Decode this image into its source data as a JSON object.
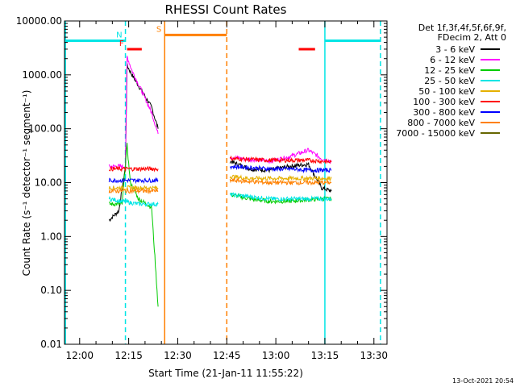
{
  "chart_data": {
    "type": "line",
    "title": "RHESSI Count Rates",
    "xlabel": "Start Time (21-Jan-11 11:55:22)",
    "ylabel": "Count Rate (s⁻¹ detector⁻¹ segment⁻¹)",
    "y_scale": "log",
    "ylim": [
      0.01,
      10000
    ],
    "xlim": [
      "11:55:22",
      "13:34:00"
    ],
    "x_ticks": [
      "12:00",
      "12:15",
      "12:30",
      "12:45",
      "13:00",
      "13:15",
      "13:30"
    ],
    "y_ticks": [
      "0.01",
      "0.10",
      "1.00",
      "10.00",
      "100.00",
      "1000.00",
      "10000.00"
    ],
    "grid": false,
    "legend_position": "right",
    "legend_header": [
      "Det 1f,3f,4f,5f,6f,9f,",
      "FDecim 2, Att 0"
    ],
    "timestamp": "13-Oct-2021 20:54",
    "series": [
      {
        "name": "3 - 6 keV",
        "color": "#000000",
        "segments": [
          {
            "x": [
              "12:09",
              "12:12",
              "12:14",
              "12:14:30",
              "12:16",
              "12:19",
              "12:22",
              "12:24"
            ],
            "y": [
              2.0,
              3.0,
              20,
              1500,
              1000,
              500,
              250,
              100
            ]
          },
          {
            "x": [
              "12:46",
              "12:52",
              "12:58",
              "13:04",
              "13:10",
              "13:14",
              "13:17"
            ],
            "y": [
              25,
              18,
              17,
              20,
              22,
              8,
              7
            ]
          }
        ]
      },
      {
        "name": "6 - 12 keV",
        "color": "#ff00ff",
        "segments": [
          {
            "x": [
              "12:09",
              "12:12",
              "12:14",
              "12:14:30",
              "12:16",
              "12:19",
              "12:22",
              "12:24"
            ],
            "y": [
              20,
              20,
              20,
              2200,
              1200,
              500,
              200,
              80
            ]
          },
          {
            "x": [
              "12:46",
              "12:52",
              "12:58",
              "13:04",
              "13:10",
              "13:14",
              "13:17"
            ],
            "y": [
              30,
              27,
              25,
              30,
              40,
              28,
              25
            ]
          }
        ]
      },
      {
        "name": "12 - 25 keV",
        "color": "#00cc00",
        "segments": [
          {
            "x": [
              "12:09",
              "12:13",
              "12:14:30",
              "12:15:30",
              "12:18",
              "12:22",
              "12:24"
            ],
            "y": [
              4,
              4,
              50,
              10,
              5,
              3.5,
              0.05
            ]
          },
          {
            "x": [
              "12:46",
              "12:52",
              "12:58",
              "13:04",
              "13:10",
              "13:14",
              "13:17"
            ],
            "y": [
              6,
              5,
              4.5,
              4.5,
              4.8,
              5,
              5
            ]
          }
        ]
      },
      {
        "name": "25 - 50 keV",
        "color": "#00e5e5",
        "segments": [
          {
            "x": [
              "12:09",
              "12:13",
              "12:18",
              "12:22",
              "12:24"
            ],
            "y": [
              5,
              4.5,
              4,
              4,
              4
            ]
          },
          {
            "x": [
              "12:46",
              "12:52",
              "12:58",
              "13:04",
              "13:10",
              "13:14",
              "13:17"
            ],
            "y": [
              6,
              5.5,
              5,
              5,
              5,
              5,
              5
            ]
          }
        ]
      },
      {
        "name": "50 - 100 keV",
        "color": "#e5b000",
        "segments": [
          {
            "x": [
              "12:09",
              "12:13",
              "12:18",
              "12:22",
              "12:24"
            ],
            "y": [
              8,
              8,
              8,
              8,
              8
            ]
          },
          {
            "x": [
              "12:46",
              "12:52",
              "12:58",
              "13:04",
              "13:10",
              "13:14",
              "13:17"
            ],
            "y": [
              13,
              12,
              12,
              12,
              12,
              12,
              12
            ]
          }
        ]
      },
      {
        "name": "100 - 300 keV",
        "color": "#ff0000",
        "segments": [
          {
            "x": [
              "12:09",
              "12:13",
              "12:18",
              "12:22",
              "12:24"
            ],
            "y": [
              18,
              18,
              18,
              18,
              18
            ]
          },
          {
            "x": [
              "12:46",
              "12:52",
              "12:58",
              "13:04",
              "13:10",
              "13:14",
              "13:17"
            ],
            "y": [
              28,
              27,
              26,
              26,
              26,
              25,
              24
            ]
          }
        ]
      },
      {
        "name": "300 - 800 keV",
        "color": "#0000ff",
        "segments": [
          {
            "x": [
              "12:09",
              "12:13",
              "12:18",
              "12:22",
              "12:24"
            ],
            "y": [
              11,
              11,
              11,
              11,
              11
            ]
          },
          {
            "x": [
              "12:46",
              "12:52",
              "12:58",
              "13:04",
              "13:10",
              "13:14",
              "13:17"
            ],
            "y": [
              20,
              19,
              18,
              18,
              17,
              17,
              17
            ]
          }
        ]
      },
      {
        "name": "800 - 7000 keV",
        "color": "#ff8000",
        "segments": [
          {
            "x": [
              "12:09",
              "12:13",
              "12:18",
              "12:22",
              "12:24"
            ],
            "y": [
              7,
              7,
              7,
              7,
              7
            ]
          },
          {
            "x": [
              "12:46",
              "12:52",
              "12:58",
              "13:04",
              "13:10",
              "13:14",
              "13:17"
            ],
            "y": [
              11,
              10.5,
              10,
              10,
              10,
              10,
              10
            ]
          }
        ]
      },
      {
        "name": "7000 - 15000 keV",
        "color": "#666600",
        "segments": []
      }
    ],
    "annotations": {
      "flags": [
        {
          "label": "",
          "color": "#00e5e5",
          "y": 4300,
          "x_start": "11:55:22",
          "x_end": "12:14"
        },
        {
          "label": "N",
          "color": "#00e5e5",
          "y": 4300,
          "x_start": "12:14",
          "x_end": "12:14"
        },
        {
          "label": "F",
          "color": "#ff0000",
          "y": 3000,
          "x_start": "12:14:30",
          "x_end": "12:19"
        },
        {
          "label": "S",
          "color": "#ff8000",
          "y": 5500,
          "x_start": "12:26",
          "x_end": "12:45"
        },
        {
          "label": "",
          "color": "#ff0000",
          "y": 3000,
          "x_start": "13:07",
          "x_end": "13:12"
        },
        {
          "label": "",
          "color": "#00e5e5",
          "y": 4300,
          "x_start": "13:15",
          "x_end": "13:32"
        }
      ],
      "vlines": [
        {
          "x": "12:14",
          "color": "#00e5e5",
          "style": "dashed"
        },
        {
          "x": "12:26",
          "color": "#ff8000",
          "style": "solid"
        },
        {
          "x": "12:45",
          "color": "#ff8000",
          "style": "dashed"
        },
        {
          "x": "13:15",
          "color": "#00e5e5",
          "style": "solid"
        },
        {
          "x": "13:32",
          "color": "#00e5e5",
          "style": "dashed"
        }
      ],
      "vline_solid_left": {
        "x": "11:55:22",
        "color": "#00e5e5"
      }
    }
  }
}
